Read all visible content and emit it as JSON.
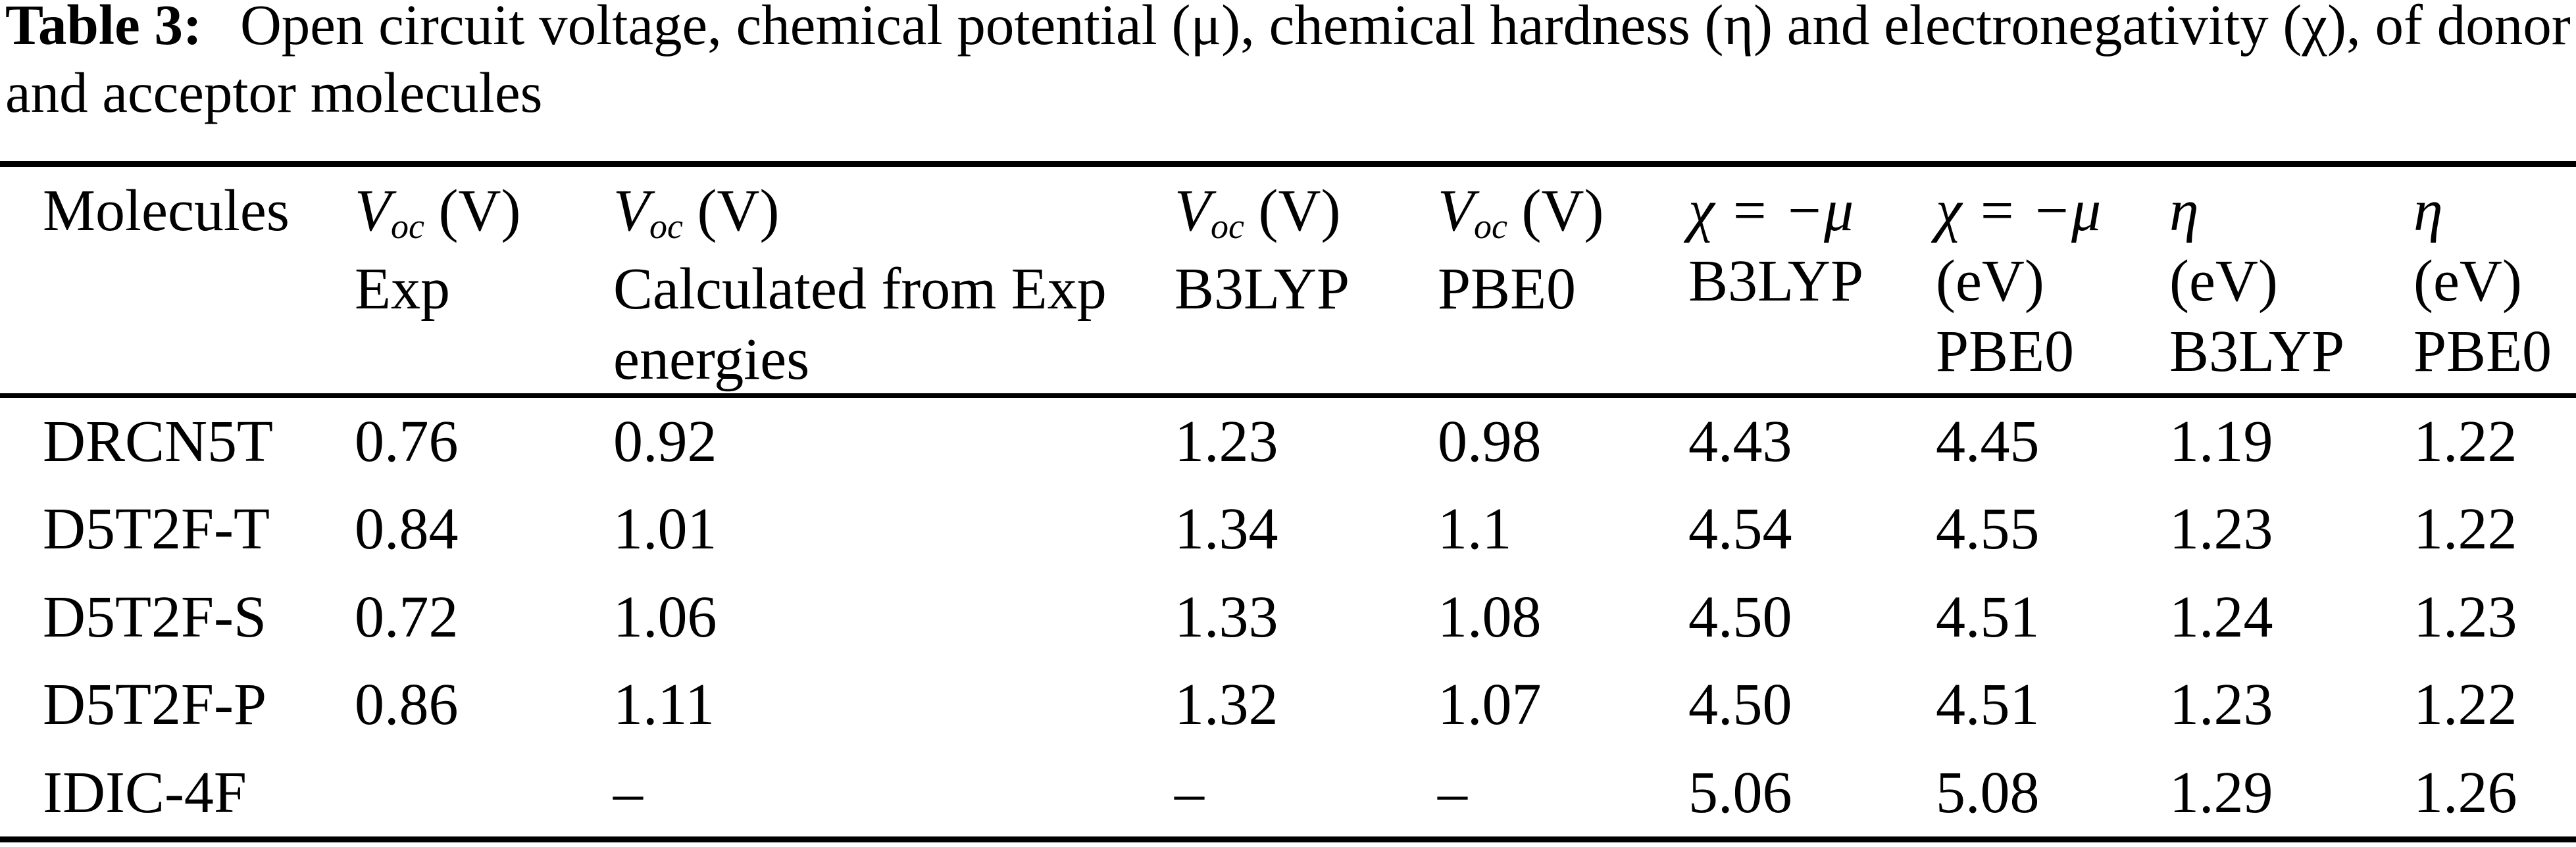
{
  "caption": {
    "label": "Table 3:",
    "line1": "Open circuit voltage, chemical potential (μ), chemical hardness (η) and electronegativity (χ), of donor",
    "line2": "and acceptor molecules"
  },
  "table": {
    "header": {
      "col1": "Molecules",
      "voc_symbol": "V",
      "voc_sub": "oc",
      "voc_unit": "(V)",
      "col2_line2": "Exp",
      "col3_line2": "Calculated from Exp",
      "col3_line3": "energies",
      "col4_line2": "B3LYP",
      "col5_line2": "PBE0",
      "chi_formula": "χ = −μ",
      "col6_line2": "B3LYP",
      "col7_line2": "(eV)",
      "col7_line3": "PBE0",
      "eta_symbol": "η",
      "col8_line2": "(eV)",
      "col8_line3": "B3LYP",
      "col9_line2": "(eV)",
      "col9_line3": "PBE0"
    },
    "rows": [
      {
        "molecule": "DRCN5T",
        "values": [
          "0.76",
          "0.92",
          "1.23",
          "0.98",
          "4.43",
          "4.45",
          "1.19",
          "1.22"
        ]
      },
      {
        "molecule": "D5T2F-T",
        "values": [
          "0.84",
          "1.01",
          "1.34",
          "1.1",
          "4.54",
          "4.55",
          "1.23",
          "1.22"
        ]
      },
      {
        "molecule": "D5T2F-S",
        "values": [
          "0.72",
          "1.06",
          "1.33",
          "1.08",
          "4.50",
          "4.51",
          "1.24",
          "1.23"
        ]
      },
      {
        "molecule": "D5T2F-P",
        "values": [
          "0.86",
          "1.11",
          "1.32",
          "1.07",
          "4.50",
          "4.51",
          "1.23",
          "1.22"
        ]
      },
      {
        "molecule": "IDIC-4F",
        "values": [
          "",
          "–",
          "–",
          "–",
          "5.06",
          "5.08",
          "1.29",
          "1.26"
        ]
      }
    ]
  }
}
